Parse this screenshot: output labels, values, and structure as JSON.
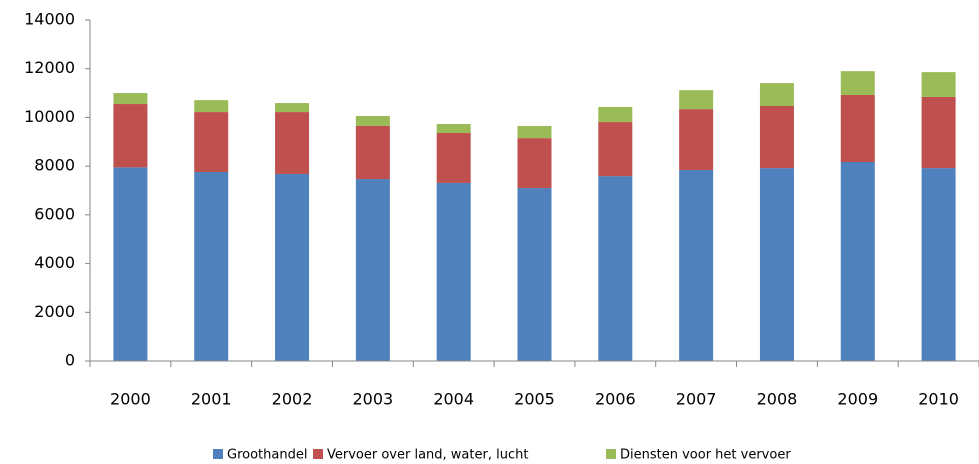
{
  "chart_data": {
    "type": "stacked-bar",
    "categories": [
      "2000",
      "2001",
      "2002",
      "2003",
      "2004",
      "2005",
      "2006",
      "2007",
      "2008",
      "2009",
      "2010"
    ],
    "series": [
      {
        "name": "Groothandel",
        "color": "#4f81bd",
        "values": [
          7950,
          7760,
          7680,
          7470,
          7310,
          7100,
          7590,
          7840,
          7920,
          8170,
          7920
        ]
      },
      {
        "name": "Vervoer over land, water, lucht",
        "color": "#c0504d",
        "values": [
          2600,
          2460,
          2540,
          2180,
          2050,
          2050,
          2220,
          2500,
          2550,
          2750,
          2920
        ]
      },
      {
        "name": "Diensten voor het vervoer",
        "color": "#9bbb59",
        "values": [
          450,
          490,
          370,
          410,
          370,
          500,
          620,
          780,
          940,
          980,
          1020
        ]
      }
    ],
    "ylim": [
      0,
      14000
    ],
    "yticks": [
      0,
      2000,
      4000,
      6000,
      8000,
      10000,
      12000,
      14000
    ],
    "grid": false
  }
}
